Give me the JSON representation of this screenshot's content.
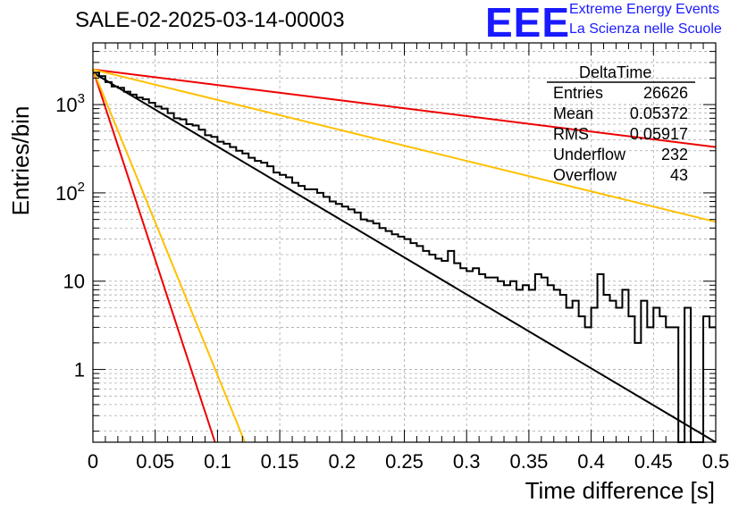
{
  "title": "SALE-02-2025-03-14-00003",
  "logo": {
    "mark": "EEE",
    "line1": "Extreme Energy Events",
    "line2": "La Scienza nelle Scuole"
  },
  "stats": {
    "name": "DeltaTime",
    "rows": [
      {
        "label": "Entries",
        "value": "26626"
      },
      {
        "label": "Mean",
        "value": "0.05372"
      },
      {
        "label": "RMS",
        "value": "0.05917"
      },
      {
        "label": "Underflow",
        "value": "232"
      },
      {
        "label": "Overflow",
        "value": "43"
      }
    ]
  },
  "chart_data": {
    "type": "line",
    "xlabel": "Time difference [s]",
    "ylabel": "Entries/bin",
    "xlim": [
      0,
      0.5
    ],
    "ylim": [
      0.15,
      5000
    ],
    "yscale": "log",
    "grid": true,
    "x_ticks": [
      "0",
      "0.05",
      "0.1",
      "0.15",
      "0.2",
      "0.25",
      "0.3",
      "0.35",
      "0.4",
      "0.45",
      "0.5"
    ],
    "y_ticks": [
      {
        "label": "1",
        "value": 1
      },
      {
        "label": "10",
        "value": 10
      },
      {
        "label": "10^2",
        "value": 100
      },
      {
        "label": "10^3",
        "value": 1000
      }
    ],
    "histogram": {
      "bin_width": 0.005,
      "counts": [
        2300,
        2100,
        1800,
        1600,
        1550,
        1400,
        1300,
        1200,
        1150,
        1050,
        950,
        900,
        800,
        700,
        680,
        600,
        580,
        520,
        450,
        430,
        380,
        360,
        330,
        300,
        280,
        250,
        230,
        220,
        200,
        170,
        160,
        150,
        130,
        120,
        110,
        110,
        100,
        90,
        80,
        75,
        70,
        65,
        60,
        50,
        48,
        45,
        40,
        37,
        34,
        32,
        30,
        27,
        25,
        22,
        20,
        18,
        17,
        22,
        16,
        14,
        13,
        14,
        12,
        11,
        11,
        10,
        9,
        10,
        8,
        9,
        8,
        12,
        11,
        9,
        8,
        7,
        5,
        6,
        4,
        3,
        5,
        12,
        7,
        6,
        5,
        8,
        4,
        2,
        6,
        3,
        5,
        4,
        3,
        3,
        0.1,
        5,
        0.1,
        0.1,
        4,
        3
      ]
    },
    "series": [
      {
        "name": "",
        "color": "#000000",
        "points": [
          [
            0,
            2300
          ],
          [
            0.5,
            0.15
          ]
        ]
      },
      {
        "name": "",
        "color": "#ee0000",
        "points": [
          [
            0,
            2500
          ],
          [
            0.5,
            330
          ]
        ]
      },
      {
        "name": "",
        "color": "#ee0000",
        "points": [
          [
            0,
            2500
          ],
          [
            0.098,
            0.15
          ]
        ]
      },
      {
        "name": "",
        "color": "#ffc000",
        "points": [
          [
            0,
            2500
          ],
          [
            0.5,
            47
          ]
        ]
      },
      {
        "name": "",
        "color": "#ffc000",
        "points": [
          [
            0,
            2500
          ],
          [
            0.122,
            0.15
          ]
        ]
      }
    ]
  }
}
